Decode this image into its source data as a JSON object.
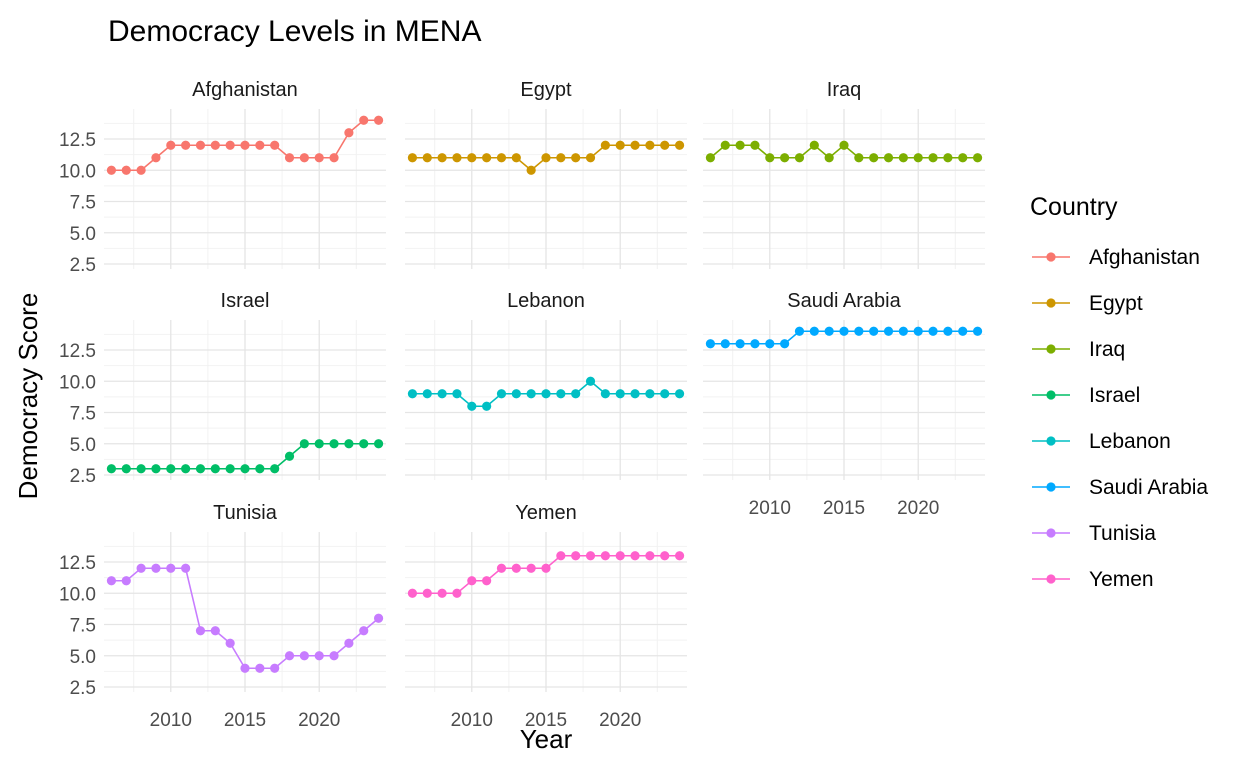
{
  "chart_data": {
    "type": "line",
    "title": "Democracy Levels in MENA",
    "xlabel": "Year",
    "ylabel": "Democracy Score",
    "x": [
      2006,
      2007,
      2008,
      2009,
      2010,
      2011,
      2012,
      2013,
      2014,
      2015,
      2016,
      2017,
      2018,
      2019,
      2020,
      2021,
      2022,
      2023,
      2024
    ],
    "xlim": [
      2005.5,
      2024.5
    ],
    "ylim": [
      2.1,
      14.9
    ],
    "x_ticks": [
      "2010",
      "2015",
      "2020"
    ],
    "y_ticks": [
      "2.5",
      "5.0",
      "7.5",
      "10.0",
      "12.5"
    ],
    "grid": true,
    "legend": {
      "title": "Country",
      "position": "right"
    },
    "facet_layout": "3x3",
    "series": [
      {
        "name": "Afghanistan",
        "color": "#F8766D",
        "values": [
          10,
          10,
          10,
          11,
          12,
          12,
          12,
          12,
          12,
          12,
          12,
          12,
          11,
          11,
          11,
          11,
          13,
          14,
          14
        ]
      },
      {
        "name": "Egypt",
        "color": "#CD9600",
        "values": [
          11,
          11,
          11,
          11,
          11,
          11,
          11,
          11,
          10,
          11,
          11,
          11,
          11,
          12,
          12,
          12,
          12,
          12,
          12
        ]
      },
      {
        "name": "Iraq",
        "color": "#7CAE00",
        "values": [
          11,
          12,
          12,
          12,
          11,
          11,
          11,
          12,
          11,
          12,
          11,
          11,
          11,
          11,
          11,
          11,
          11,
          11,
          11
        ]
      },
      {
        "name": "Israel",
        "color": "#00BE67",
        "values": [
          3,
          3,
          3,
          3,
          3,
          3,
          3,
          3,
          3,
          3,
          3,
          3,
          4,
          5,
          5,
          5,
          5,
          5,
          5
        ]
      },
      {
        "name": "Lebanon",
        "color": "#00BFC4",
        "values": [
          9,
          9,
          9,
          9,
          8,
          8,
          9,
          9,
          9,
          9,
          9,
          9,
          10,
          9,
          9,
          9,
          9,
          9,
          9
        ]
      },
      {
        "name": "Saudi Arabia",
        "color": "#00A9FF",
        "values": [
          13,
          13,
          13,
          13,
          13,
          13,
          14,
          14,
          14,
          14,
          14,
          14,
          14,
          14,
          14,
          14,
          14,
          14,
          14
        ]
      },
      {
        "name": "Tunisia",
        "color": "#C77CFF",
        "values": [
          11,
          11,
          12,
          12,
          12,
          12,
          7,
          7,
          6,
          4,
          4,
          4,
          5,
          5,
          5,
          5,
          6,
          7,
          8
        ]
      },
      {
        "name": "Yemen",
        "color": "#FF61CC",
        "values": [
          10,
          10,
          10,
          10,
          11,
          11,
          12,
          12,
          12,
          12,
          13,
          13,
          13,
          13,
          13,
          13,
          13,
          13,
          13
        ]
      }
    ]
  }
}
